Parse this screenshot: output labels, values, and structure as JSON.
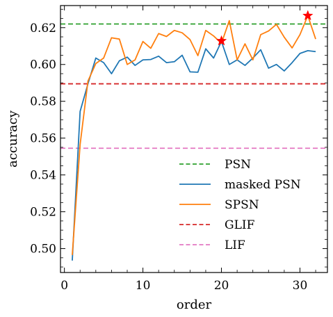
{
  "chart_data": {
    "type": "line",
    "title": "",
    "xlabel": "order",
    "ylabel": "accuracy",
    "xlim": [
      -0.5,
      33.5
    ],
    "ylim": [
      0.487,
      0.632
    ],
    "xticks": [
      0,
      10,
      20,
      30
    ],
    "xtick_labels": [
      "0",
      "10",
      "20",
      "30"
    ],
    "yticks": [
      0.5,
      0.52,
      0.54,
      0.56,
      0.58,
      0.6,
      0.62
    ],
    "ytick_labels": [
      "0.50",
      "0.52",
      "0.54",
      "0.56",
      "0.58",
      "0.60",
      "0.62"
    ],
    "grid": false,
    "legend_position": "bottom-right",
    "x": [
      1,
      2,
      3,
      4,
      5,
      6,
      7,
      8,
      9,
      10,
      11,
      12,
      13,
      14,
      15,
      16,
      17,
      18,
      19,
      20,
      21,
      22,
      23,
      24,
      25,
      26,
      27,
      28,
      29,
      30,
      31,
      32
    ],
    "series": [
      {
        "name": "masked PSN",
        "style": "solid",
        "color": "#1f77b4",
        "values": [
          0.4935,
          0.5745,
          0.5895,
          0.6035,
          0.601,
          0.595,
          0.602,
          0.604,
          0.5995,
          0.6025,
          0.6027,
          0.6045,
          0.601,
          0.6015,
          0.605,
          0.596,
          0.5958,
          0.6085,
          0.6035,
          0.6125,
          0.6,
          0.6025,
          0.5995,
          0.6035,
          0.608,
          0.598,
          0.6,
          0.5965,
          0.601,
          0.606,
          0.6075,
          0.607
        ]
      },
      {
        "name": "SPSN",
        "style": "solid",
        "color": "#ff7f0e",
        "values": [
          0.4965,
          0.5565,
          0.591,
          0.6005,
          0.6035,
          0.6145,
          0.6138,
          0.6,
          0.6025,
          0.6125,
          0.6088,
          0.6168,
          0.6152,
          0.6185,
          0.6172,
          0.6135,
          0.6048,
          0.6185,
          0.6155,
          0.6115,
          0.6238,
          0.6025,
          0.6112,
          0.6025,
          0.6162,
          0.6182,
          0.6218,
          0.6148,
          0.609,
          0.6162,
          0.6265,
          0.6138
        ]
      }
    ],
    "reference_lines": [
      {
        "name": "PSN",
        "value": 0.622,
        "color": "#2ca02c",
        "style": "dashed"
      },
      {
        "name": "GLIF",
        "value": 0.5895,
        "color": "#d62728",
        "style": "dashed"
      },
      {
        "name": "LIF",
        "value": 0.5545,
        "color": "#e377c2",
        "style": "dashed"
      }
    ],
    "markers": [
      {
        "x": 20,
        "y": 0.6128,
        "color": "#ff0000",
        "shape": "star"
      },
      {
        "x": 31,
        "y": 0.6265,
        "color": "#ff0000",
        "shape": "star"
      }
    ],
    "legend": [
      {
        "label": "PSN",
        "color": "#2ca02c",
        "style": "dashed"
      },
      {
        "label": "masked PSN",
        "color": "#1f77b4",
        "style": "solid"
      },
      {
        "label": "SPSN",
        "color": "#ff7f0e",
        "style": "solid"
      },
      {
        "label": "GLIF",
        "color": "#d62728",
        "style": "dashed"
      },
      {
        "label": "LIF",
        "color": "#e377c2",
        "style": "dashed"
      }
    ]
  }
}
